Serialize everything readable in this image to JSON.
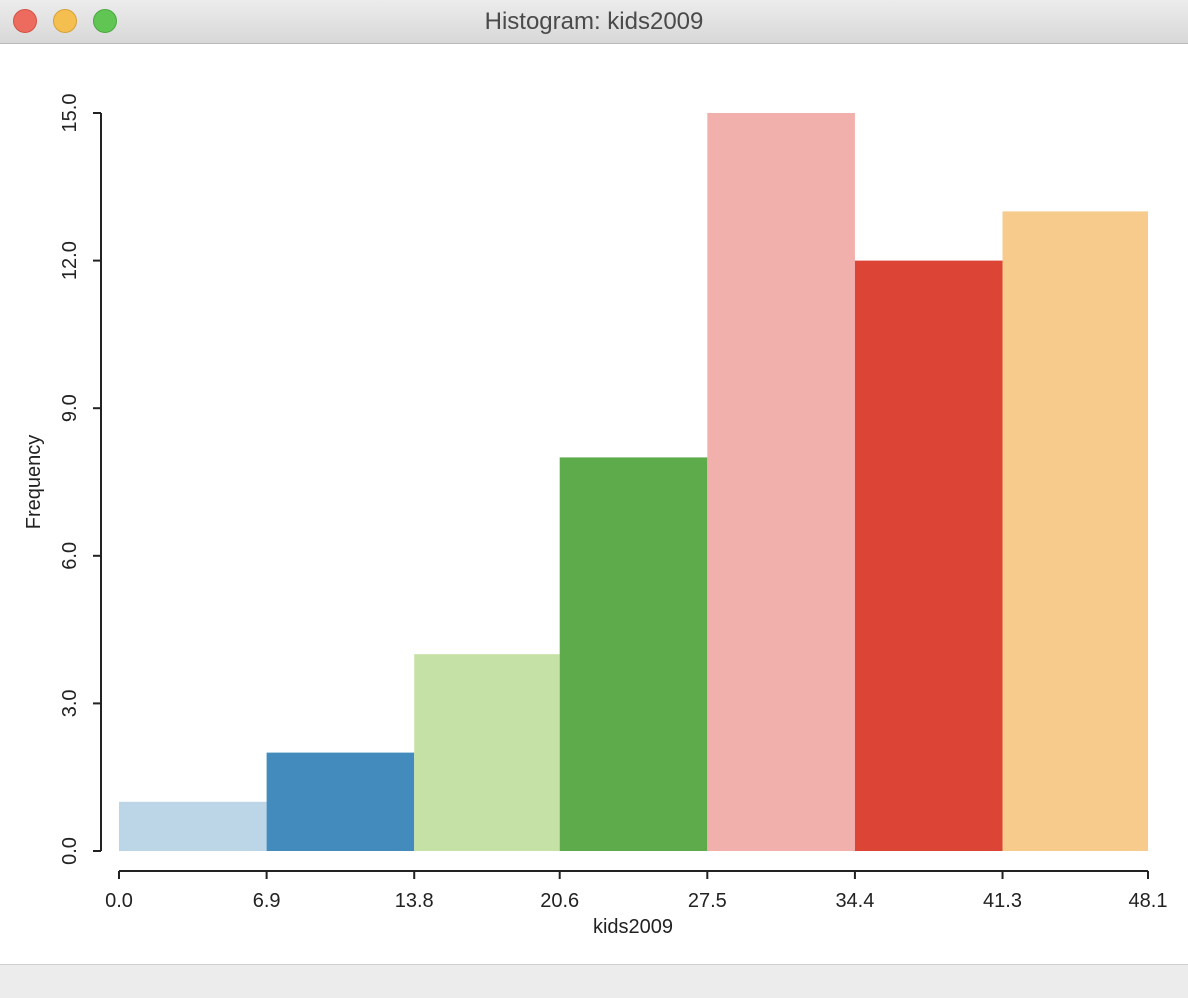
{
  "window": {
    "title": "Histogram: kids2009"
  },
  "chart_data": {
    "type": "bar",
    "title": "",
    "xlabel": "kids2009",
    "ylabel": "Frequency",
    "bin_edges": [
      0.0,
      6.9,
      13.8,
      20.6,
      27.5,
      34.4,
      41.3,
      48.1
    ],
    "x_tick_labels": [
      "0.0",
      "6.9",
      "13.8",
      "20.6",
      "27.5",
      "34.4",
      "41.3",
      "48.1"
    ],
    "y_ticks": [
      0,
      3,
      6,
      9,
      12,
      15
    ],
    "y_tick_labels": [
      "0.0",
      "3.0",
      "6.0",
      "9.0",
      "12.0",
      "15.0"
    ],
    "ylim": [
      0,
      15
    ],
    "values": [
      1,
      2,
      4,
      8,
      15,
      12,
      13
    ],
    "colors": [
      "#bcd6e8",
      "#438bbd",
      "#c6e1a5",
      "#5dab4b",
      "#f2b0ac",
      "#dc4535",
      "#f6cb8c"
    ],
    "grid": false,
    "legend": "none"
  }
}
